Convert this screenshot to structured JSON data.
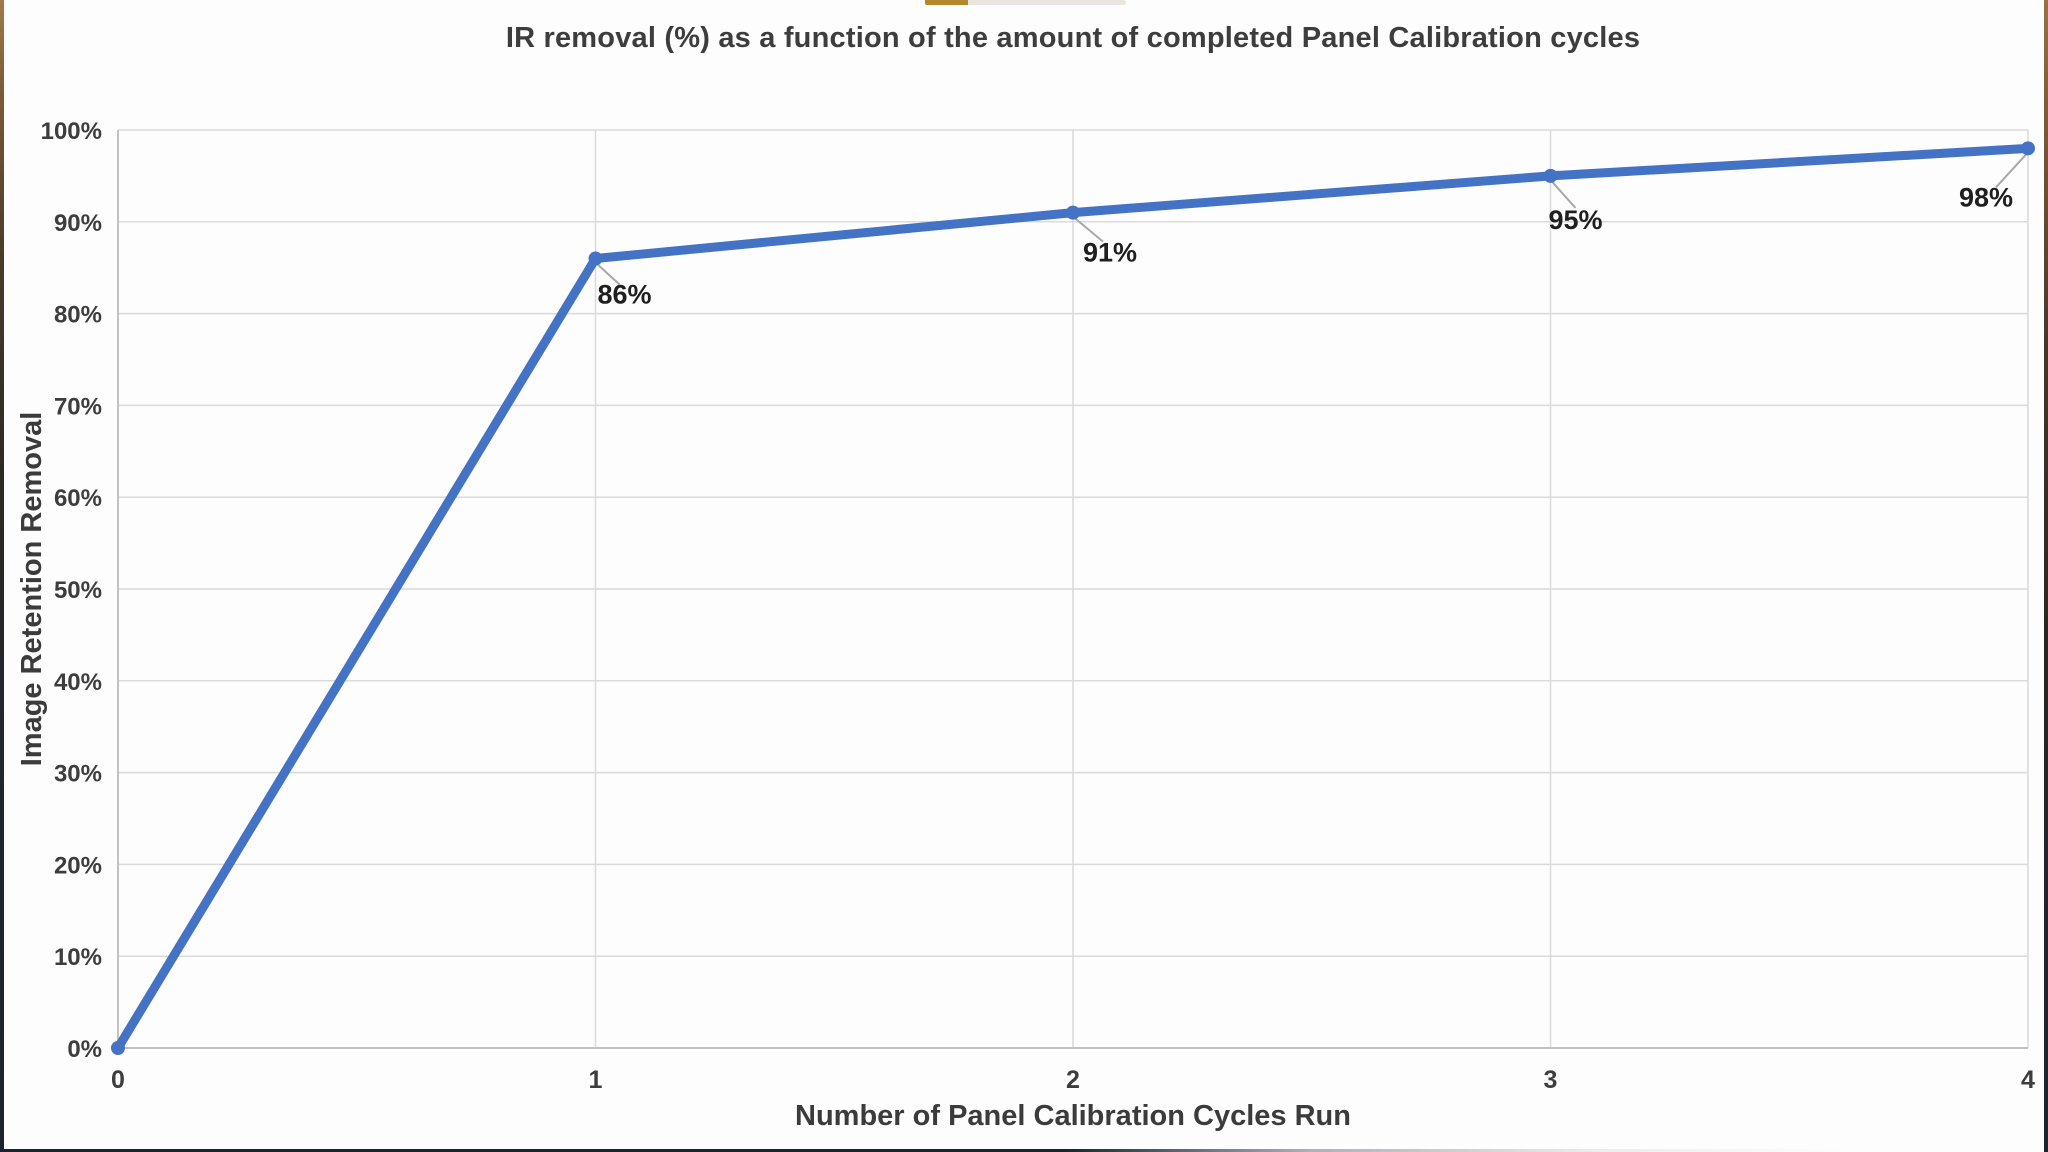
{
  "chart_data": {
    "type": "line",
    "title": "IR removal (%) as a function of the amount of completed Panel Calibration cycles",
    "xlabel": "Number of Panel Calibration Cycles Run",
    "ylabel": "Image Retention Removal",
    "x": [
      0,
      1,
      2,
      3,
      4
    ],
    "series": [
      {
        "values": [
          0,
          86,
          91,
          95,
          98
        ],
        "point_labels": [
          "",
          "86%",
          "91%",
          "95%",
          "98%"
        ],
        "color": "#4472c4"
      }
    ],
    "xlim": [
      0,
      4
    ],
    "ylim": [
      0,
      100
    ],
    "x_tick_labels": [
      "0",
      "1",
      "2",
      "3",
      "4"
    ],
    "y_tick_labels": [
      "0%",
      "10%",
      "20%",
      "30%",
      "40%",
      "50%",
      "60%",
      "70%",
      "80%",
      "90%",
      "100%"
    ],
    "grid": "on",
    "legend": "none"
  },
  "colors": {
    "line": "#4472c4",
    "grid": "#dadada",
    "axis": "#c2c2c2",
    "tick_text": "#3d3d3d",
    "data_label": "#1f1f1f",
    "leader": "#a8a8a8"
  },
  "decor": {
    "top_bar_accent": "#b2872e",
    "top_bar_track": "#e8e5e1"
  }
}
